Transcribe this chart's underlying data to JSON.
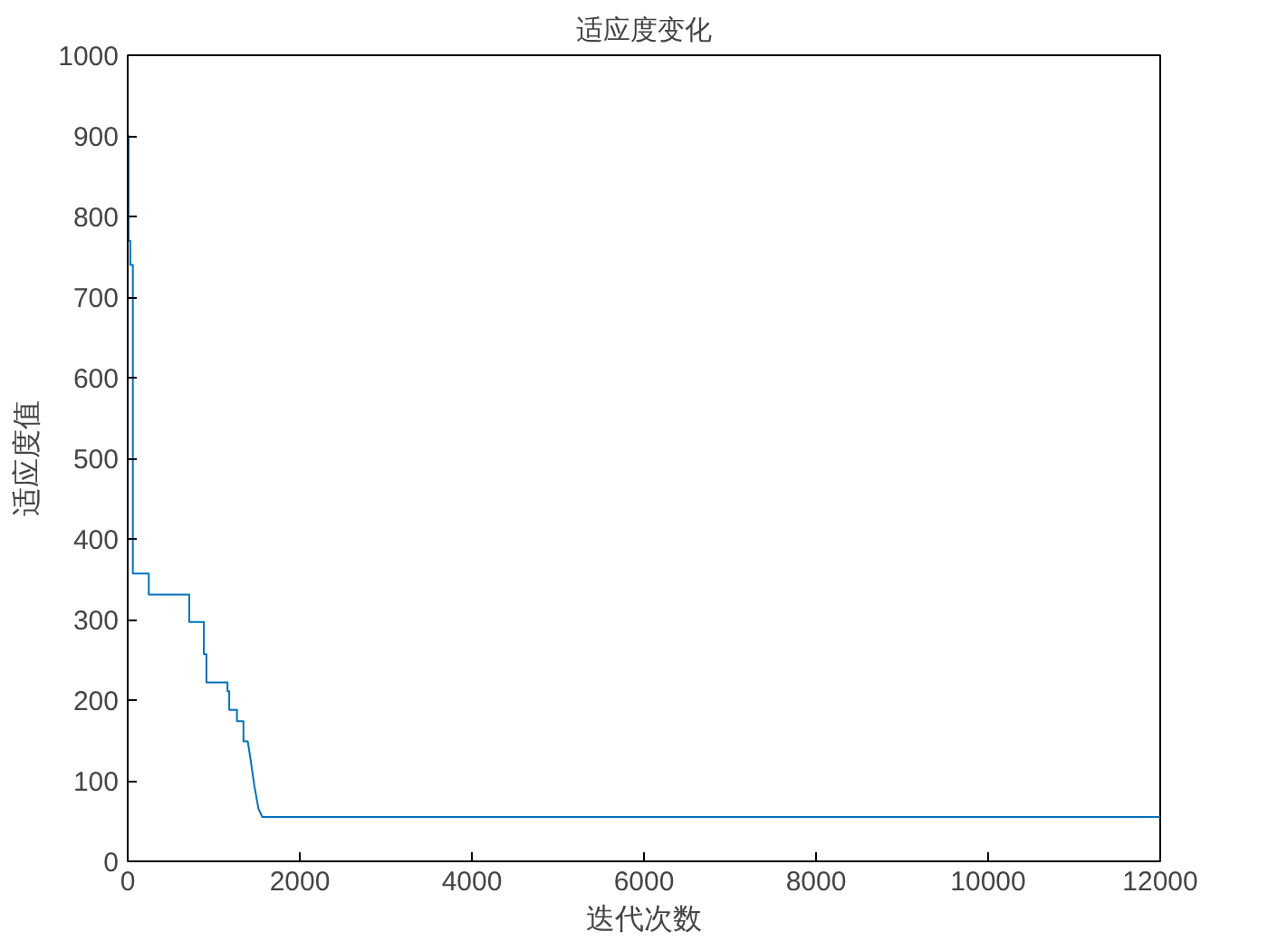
{
  "chart_data": {
    "type": "line",
    "title": "适应度变化",
    "xlabel": "迭代次数",
    "ylabel": "适应度值",
    "xlim": [
      0,
      12000
    ],
    "ylim": [
      0,
      1000
    ],
    "xticks": [
      0,
      2000,
      4000,
      6000,
      8000,
      10000,
      12000
    ],
    "yticks": [
      0,
      100,
      200,
      300,
      400,
      500,
      600,
      700,
      800,
      900,
      1000
    ],
    "grid": false,
    "line_style": "solid",
    "marker": "none",
    "series": [
      {
        "color": "#0072bd",
        "x": [
          0,
          10,
          10,
          30,
          30,
          60,
          60,
          245,
          245,
          715,
          715,
          885,
          885,
          915,
          915,
          1160,
          1160,
          1180,
          1180,
          1270,
          1270,
          1345,
          1345,
          1395,
          1430,
          1470,
          1520,
          1565,
          12000
        ],
        "values": [
          900,
          900,
          770,
          770,
          740,
          740,
          357,
          357,
          331,
          331,
          297,
          297,
          257,
          257,
          222,
          222,
          211,
          211,
          188,
          188,
          174,
          174,
          149,
          149,
          125,
          95,
          65,
          55,
          55
        ]
      }
    ]
  }
}
